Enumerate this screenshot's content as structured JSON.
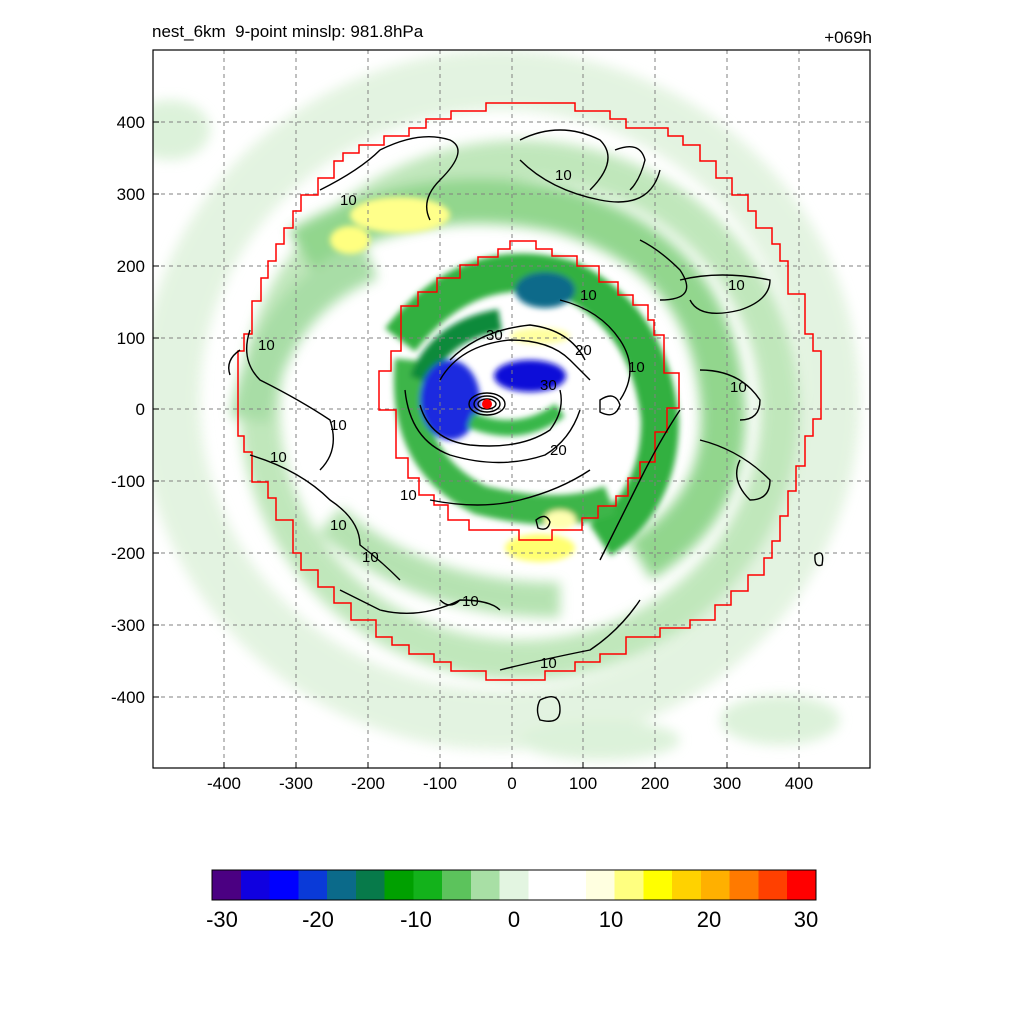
{
  "header": {
    "title": "nest_6km  9-point minslp: 981.8hPa",
    "time_label": "+069h"
  },
  "map": {
    "x_ticks": [
      "-400",
      "-300",
      "-200",
      "-100",
      "0",
      "100",
      "200",
      "300",
      "400"
    ],
    "y_ticks": [
      "400",
      "300",
      "200",
      "100",
      "0",
      "-100",
      "-200",
      "-300",
      "-400"
    ],
    "x_range": [
      -500,
      500
    ],
    "y_range": [
      -500,
      500
    ],
    "grid": true,
    "domain_outline_color": "#ff0000",
    "center_marker_color": "#ff0000",
    "contour_labels": [
      "10",
      "10",
      "10",
      "10",
      "10",
      "10",
      "10",
      "10",
      "10",
      "10",
      "10",
      "10",
      "10",
      "10",
      "20",
      "20",
      "30",
      "30"
    ]
  },
  "colorbar": {
    "min": -30,
    "max": 30,
    "tick_labels": [
      "-30",
      "-20",
      "-10",
      "0",
      "10",
      "20",
      "30"
    ],
    "stops": [
      "#4b0082",
      "#1000e0",
      "#0000ff",
      "#0a3ad8",
      "#0b6a8a",
      "#077a4a",
      "#00a000",
      "#13b21b",
      "#5cc35c",
      "#a8dfa5",
      "#e3f5e1",
      "#ffffff",
      "#ffffff",
      "#ffffe0",
      "#ffff80",
      "#ffff00",
      "#ffd200",
      "#ffb000",
      "#ff7a00",
      "#ff4000",
      "#ff0000"
    ]
  }
}
